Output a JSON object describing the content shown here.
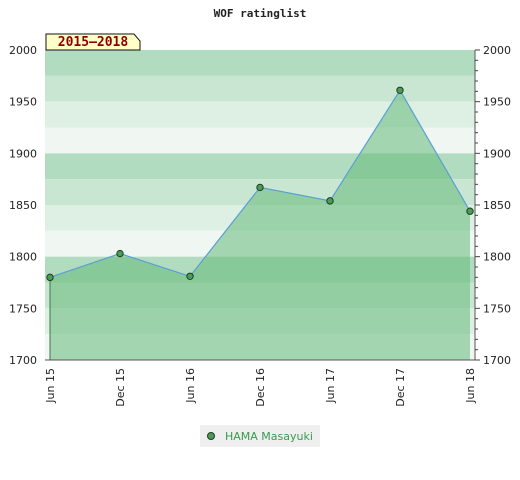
{
  "chart_data": {
    "type": "area",
    "title": "WOF ratinglist",
    "period_label": "2015–2018",
    "x": [
      "Jun 15",
      "Dec 15",
      "Jun 16",
      "Dec 16",
      "Jun 17",
      "Dec 17",
      "Jun 18"
    ],
    "series": [
      {
        "name": "HAMA Masayuki",
        "values": [
          1780,
          1803,
          1781,
          1867,
          1854,
          1961,
          1844
        ]
      }
    ],
    "yticks": [
      1700,
      1750,
      1800,
      1850,
      1900,
      1950,
      2000
    ],
    "ylim": [
      1700,
      2000
    ],
    "grid": true,
    "legend_position": "bottom",
    "colors": {
      "line": "#5a9fd4",
      "area": "#66b97c",
      "point": "#4c9b5c",
      "legend_text": "#3a9a50",
      "band_dark": "#b1dcbf",
      "band_mid": "#c9e6d3",
      "band_light": "#deefe3",
      "band_lightest": "#f0f7f2",
      "badge_bg": "#ffffc8",
      "badge_text": "#8b0000"
    }
  }
}
